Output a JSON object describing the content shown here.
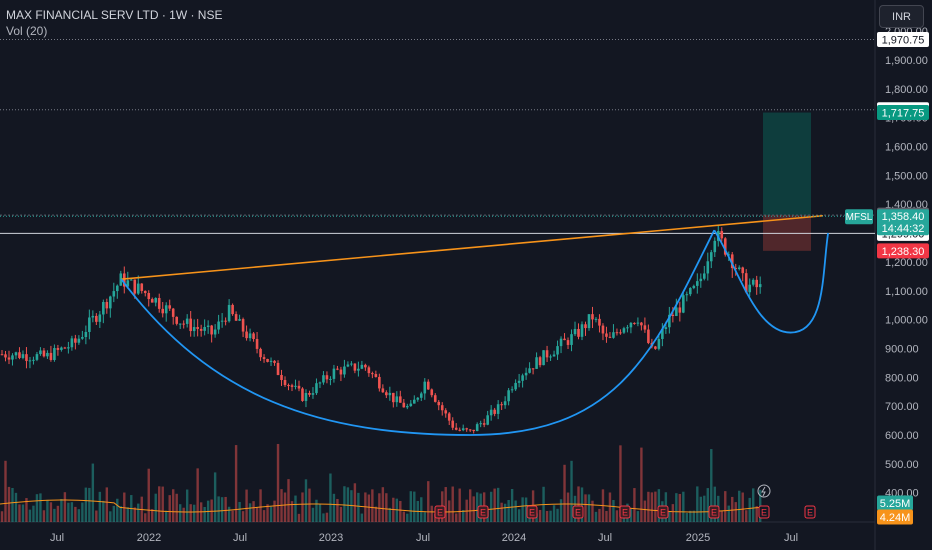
{
  "header": {
    "symbol_line": "MAX FINANCIAL SERV LTD · 1W · NSE",
    "vol_line": "Vol (20)",
    "currency": "INR"
  },
  "colors": {
    "background": "#131722",
    "up": "#26a69a",
    "down": "#ef5350",
    "trendline": "#f7931a",
    "cup_curve": "#2196f3",
    "vol_ma": "#f7931a",
    "target_zone": "#0e4b47",
    "stop_zone": "#5c2a2d"
  },
  "chart_data": {
    "type": "candlestick",
    "y_ticks": [
      "400.00",
      "500.00",
      "600.00",
      "700.00",
      "800.00",
      "900.00",
      "1,000.00",
      "1,100.00",
      "1,200.00",
      "1,300.00",
      "1,400.00",
      "1,500.00",
      "1,600.00",
      "1,700.00",
      "1,800.00",
      "1,900.00",
      "2,000.00"
    ],
    "x_ticks": [
      "Jul",
      "2022",
      "Jul",
      "2023",
      "Jul",
      "2024",
      "Jul",
      "2025",
      "Jul"
    ],
    "price_labels": [
      {
        "text": "1,970.75",
        "value": 1970.75,
        "style": "white"
      },
      {
        "text": "1,727.30",
        "value": 1727.3,
        "style": "white"
      },
      {
        "text": "1,717.75",
        "value": 1717.75,
        "style": "green"
      },
      {
        "text": "1,362.00",
        "value": 1362,
        "style": "gray"
      },
      {
        "text": "1,299.00",
        "value": 1299,
        "style": "white"
      },
      {
        "text": "1,238.30",
        "value": 1238.3,
        "style": "red"
      }
    ],
    "last_price": {
      "symbol": "MFSL",
      "value": "1,358.40",
      "countdown": "14:44:32",
      "price": 1358.4
    },
    "volume_labels": [
      {
        "text": "5.25M",
        "style": "teal"
      },
      {
        "text": "4.24M",
        "style": "orange"
      }
    ],
    "horizontal_lines": [
      1970.75,
      1727.3,
      1362,
      1299
    ],
    "position_tool": {
      "entry": 1362,
      "target": 1717.75,
      "stop": 1238.3
    },
    "trendline": [
      {
        "date": "2021-06",
        "price": 1140
      },
      {
        "date": "2025-05",
        "price": 1362
      }
    ],
    "cup": {
      "left_rim": {
        "date": "2021-06",
        "price": 1140
      },
      "bottom": {
        "date": "2023-05",
        "price": 600
      },
      "right_rim": {
        "date": "2024-09",
        "price": 1310
      }
    },
    "handle": {
      "left": {
        "date": "2024-09",
        "price": 1310
      },
      "low": {
        "date": "2025-02",
        "price": 955
      },
      "right": {
        "date": "2025-04",
        "price": 1300
      }
    },
    "earnings_markers": [
      "E",
      "E",
      "E",
      "E",
      "E",
      "E",
      "E",
      "E",
      "E",
      "E",
      "E"
    ],
    "price_anchors": [
      [
        "2020-11",
        880
      ],
      [
        "2021-01",
        870
      ],
      [
        "2021-03",
        920
      ],
      [
        "2021-05",
        1060
      ],
      [
        "2021-06",
        1140
      ],
      [
        "2021-08",
        1080
      ],
      [
        "2021-10",
        990
      ],
      [
        "2021-12",
        950
      ],
      [
        "2022-01",
        1030
      ],
      [
        "2022-03",
        900
      ],
      [
        "2022-05",
        780
      ],
      [
        "2022-06",
        730
      ],
      [
        "2022-08",
        820
      ],
      [
        "2022-10",
        840
      ],
      [
        "2022-12",
        720
      ],
      [
        "2023-01",
        690
      ],
      [
        "2023-02",
        790
      ],
      [
        "2023-03",
        700
      ],
      [
        "2023-04",
        620
      ],
      [
        "2023-05",
        610
      ],
      [
        "2023-07",
        700
      ],
      [
        "2023-08",
        800
      ],
      [
        "2023-10",
        880
      ],
      [
        "2023-12",
        950
      ],
      [
        "2024-01",
        1010
      ],
      [
        "2024-02",
        920
      ],
      [
        "2024-03",
        980
      ],
      [
        "2024-04",
        1010
      ],
      [
        "2024-05",
        880
      ],
      [
        "2024-06",
        1000
      ],
      [
        "2024-08",
        1120
      ],
      [
        "2024-09",
        1300
      ],
      [
        "2024-10",
        1230
      ],
      [
        "2024-11",
        1120
      ],
      [
        "2024-12",
        1110
      ],
      [
        "2025-01",
        1060
      ],
      [
        "2025-02",
        980
      ],
      [
        "2025-03",
        1150
      ],
      [
        "2025-04",
        1300
      ],
      [
        "2025-05",
        1358
      ]
    ]
  }
}
